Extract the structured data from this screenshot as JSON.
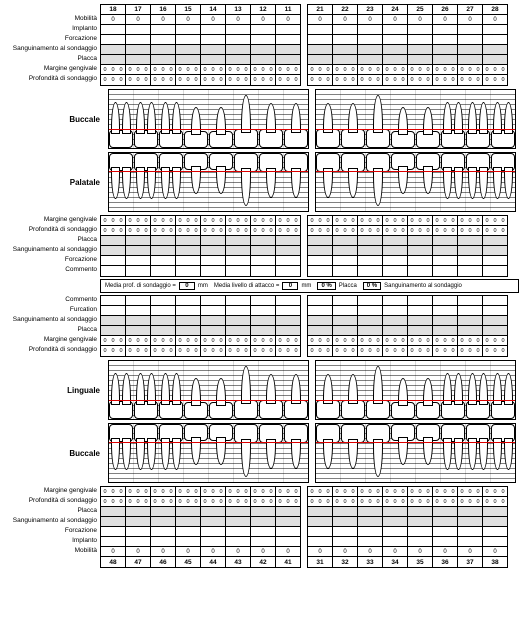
{
  "upperRight": [
    "18",
    "17",
    "16",
    "15",
    "14",
    "13",
    "12",
    "11"
  ],
  "upperLeft": [
    "21",
    "22",
    "23",
    "24",
    "25",
    "26",
    "27",
    "28"
  ],
  "lowerRight": [
    "48",
    "47",
    "46",
    "45",
    "44",
    "43",
    "42",
    "41"
  ],
  "lowerLeft": [
    "31",
    "32",
    "33",
    "34",
    "35",
    "36",
    "37",
    "38"
  ],
  "rowsTop": [
    "Mobilità",
    "Implanto",
    "Forcazione",
    "Sanguinamento al sondaggio",
    "Placca",
    "Margine gengivale",
    "Profondità di sondaggio"
  ],
  "rowsMidUpper": [
    "Margine gengivale",
    "Profondità di sondaggio",
    "Placca",
    "Sanguinamento al sondaggio",
    "Forcazione",
    "Commento"
  ],
  "rowsMidLower": [
    "Commento",
    "Furcation",
    "Sanguinamento al sondaggio",
    "Placca",
    "Margine gengivale",
    "Profondità di sondaggio"
  ],
  "rowsBottom": [
    "Margine gengivale",
    "Profondità di sondaggio",
    "Placca",
    "Sanguinamento al sondaggio",
    "Forcazione",
    "Implanto",
    "Mobilità"
  ],
  "views": {
    "buccale": "Buccale",
    "palatale": "Palatale",
    "linguale": "Linguale"
  },
  "summary": {
    "l1": "Media prof. di sondaggio =",
    "v1": "0",
    "u1": "mm",
    "l2": "Media livello di attacco =",
    "v2": "0",
    "u2": "mm",
    "l3": "",
    "v3": "0 %",
    "u3": "Placca",
    "l4": "",
    "v4": "0 %",
    "u4": "Sanguinamento al sondaggio"
  },
  "zero": "0",
  "colors": {
    "gum": "#d00",
    "grid": "#000"
  }
}
